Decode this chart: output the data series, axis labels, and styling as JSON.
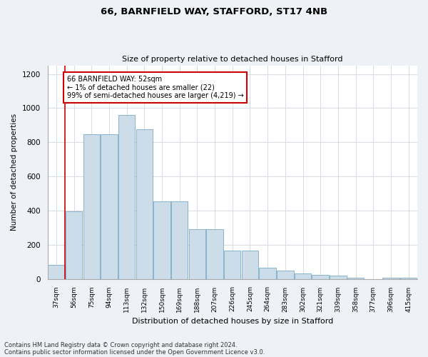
{
  "title1": "66, BARNFIELD WAY, STAFFORD, ST17 4NB",
  "title2": "Size of property relative to detached houses in Stafford",
  "xlabel": "Distribution of detached houses by size in Stafford",
  "ylabel": "Number of detached properties",
  "categories": [
    "37sqm",
    "56sqm",
    "75sqm",
    "94sqm",
    "113sqm",
    "132sqm",
    "150sqm",
    "169sqm",
    "188sqm",
    "207sqm",
    "226sqm",
    "245sqm",
    "264sqm",
    "283sqm",
    "302sqm",
    "321sqm",
    "339sqm",
    "358sqm",
    "377sqm",
    "396sqm",
    "415sqm"
  ],
  "values": [
    80,
    395,
    845,
    845,
    960,
    875,
    455,
    455,
    290,
    290,
    165,
    165,
    65,
    50,
    30,
    25,
    20,
    5,
    0,
    5,
    5
  ],
  "bar_color": "#ccdce8",
  "bar_edge_color": "#7aaac8",
  "highlight_color": "#cc0000",
  "annotation_text": "66 BARNFIELD WAY: 52sqm\n← 1% of detached houses are smaller (22)\n99% of semi-detached houses are larger (4,219) →",
  "annotation_box_color": "#ffffff",
  "annotation_box_edge": "#cc0000",
  "ylim": [
    0,
    1250
  ],
  "yticks": [
    0,
    200,
    400,
    600,
    800,
    1000,
    1200
  ],
  "footer1": "Contains HM Land Registry data © Crown copyright and database right 2024.",
  "footer2": "Contains public sector information licensed under the Open Government Licence v3.0.",
  "background_color": "#eef2f6",
  "plot_bg_color": "#ffffff",
  "grid_color": "#d0d8e0"
}
